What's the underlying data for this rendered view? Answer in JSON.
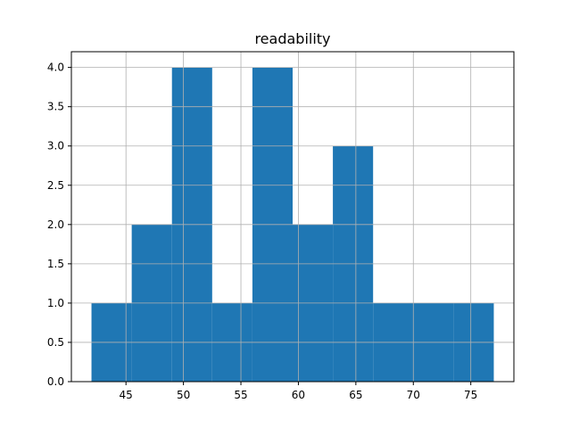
{
  "chart_data": {
    "type": "bar",
    "title": "readability",
    "xlabel": "",
    "ylabel": "",
    "xlim": [
      40.25,
      78.75
    ],
    "ylim": [
      0,
      4.2
    ],
    "grid": true,
    "bar_color": "#1f77b4",
    "x_ticks": [
      45,
      50,
      55,
      60,
      65,
      70,
      75
    ],
    "y_ticks": [
      0.0,
      0.5,
      1.0,
      1.5,
      2.0,
      2.5,
      3.0,
      3.5,
      4.0
    ],
    "bins": [
      {
        "x0": 42.0,
        "x1": 45.5,
        "count": 1
      },
      {
        "x0": 45.5,
        "x1": 49.0,
        "count": 2
      },
      {
        "x0": 49.0,
        "x1": 52.5,
        "count": 4
      },
      {
        "x0": 52.5,
        "x1": 56.0,
        "count": 1
      },
      {
        "x0": 56.0,
        "x1": 59.5,
        "count": 4
      },
      {
        "x0": 59.5,
        "x1": 63.0,
        "count": 2
      },
      {
        "x0": 63.0,
        "x1": 66.5,
        "count": 3
      },
      {
        "x0": 66.5,
        "x1": 70.0,
        "count": 1
      },
      {
        "x0": 70.0,
        "x1": 73.5,
        "count": 1
      },
      {
        "x0": 73.5,
        "x1": 77.0,
        "count": 1
      }
    ]
  }
}
